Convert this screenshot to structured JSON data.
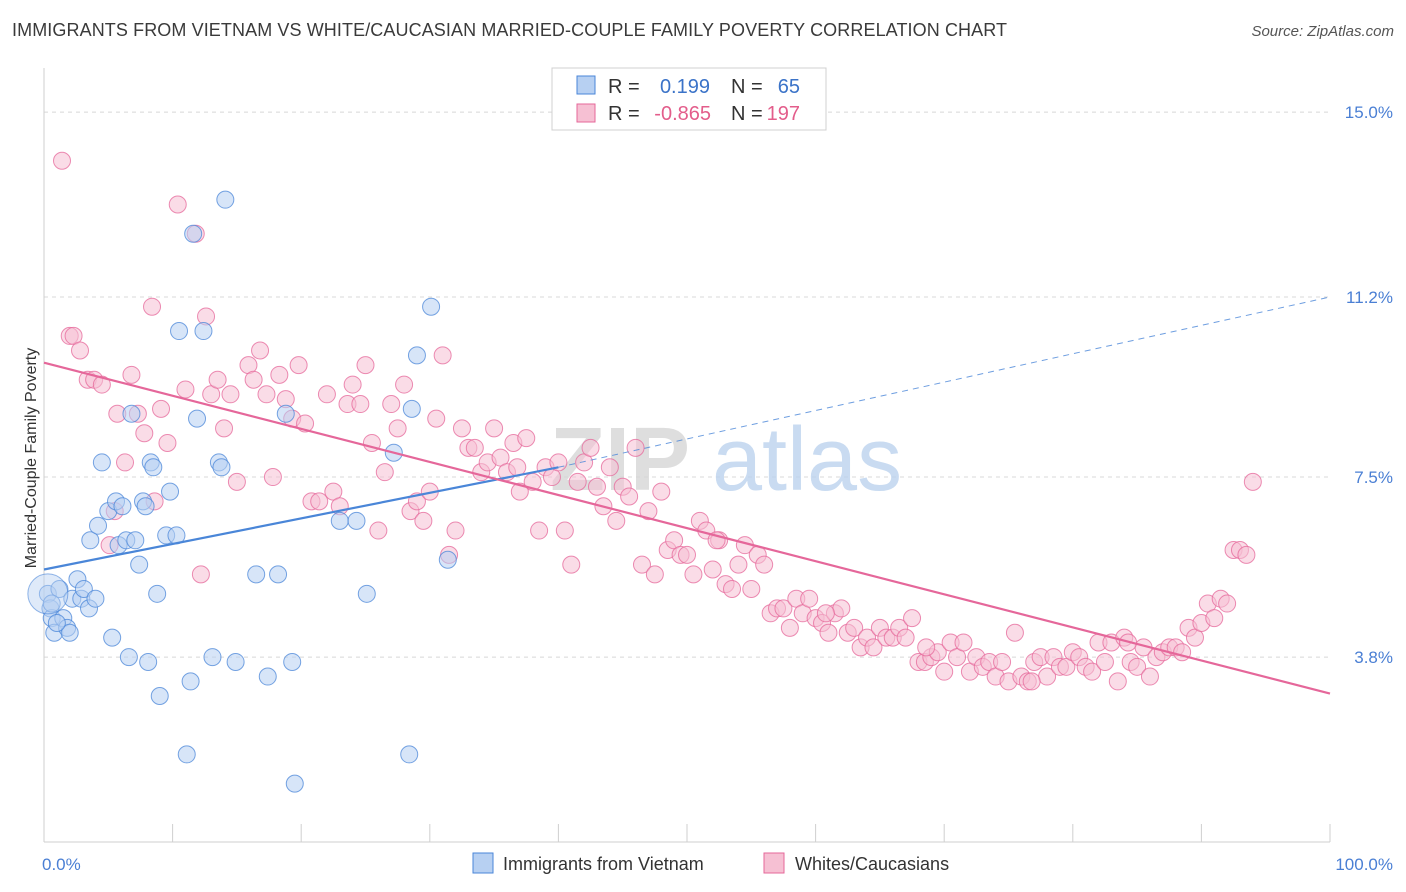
{
  "title": "IMMIGRANTS FROM VIETNAM VS WHITE/CAUCASIAN MARRIED-COUPLE FAMILY POVERTY CORRELATION CHART",
  "source": "Source: ZipAtlas.com",
  "watermark": {
    "zip": "ZIP",
    "atlas": "atlas"
  },
  "colors": {
    "blue": "#4a86d8",
    "blue_fill": "#b7d0f2",
    "pink": "#e5679a",
    "pink_fill": "#f6c0d3",
    "axis_text": "#4a7fd4",
    "grid": "#d8d8d8"
  },
  "legend_top": {
    "rows": [
      {
        "r_label": "R =",
        "r_value": "0.199",
        "n_label": "N =",
        "n_value": "65",
        "series": "blue"
      },
      {
        "r_label": "R =",
        "r_value": "-0.865",
        "n_label": "N =",
        "n_value": "197",
        "series": "pink"
      }
    ]
  },
  "chart_data": {
    "type": "scatter",
    "title": "IMMIGRANTS FROM VIETNAM VS WHITE/CAUCASIAN MARRIED-COUPLE FAMILY POVERTY CORRELATION CHART",
    "xlabel": "",
    "ylabel": "Married-Couple Family Poverty",
    "xlim": [
      0,
      100
    ],
    "ylim": [
      0,
      15.7
    ],
    "x_tick_labels": [
      "0.0%",
      "100.0%"
    ],
    "y_ticks": [
      3.8,
      7.5,
      11.2,
      15.0
    ],
    "y_tick_labels": [
      "3.8%",
      "7.5%",
      "11.2%",
      "15.0%"
    ],
    "grid": true,
    "legend_position": "top-center",
    "series": [
      {
        "name": "Immigrants from Vietnam",
        "color": "#4a86d8",
        "r": 0.199,
        "n": 65,
        "trend": {
          "x": [
            0,
            40
          ],
          "y": [
            5.6,
            7.7
          ],
          "dashed_extension_to": [
            100,
            11.2
          ]
        },
        "points": [
          [
            0.3,
            5.1
          ],
          [
            0.5,
            4.8
          ],
          [
            0.6,
            4.6
          ],
          [
            0.8,
            4.3
          ],
          [
            1.2,
            5.2
          ],
          [
            1.5,
            4.6
          ],
          [
            1.8,
            4.4
          ],
          [
            2.0,
            4.3
          ],
          [
            2.2,
            5.0
          ],
          [
            2.6,
            5.4
          ],
          [
            2.9,
            5.0
          ],
          [
            3.1,
            5.2
          ],
          [
            3.5,
            4.8
          ],
          [
            4.0,
            5.0
          ],
          [
            3.6,
            6.2
          ],
          [
            4.2,
            6.5
          ],
          [
            4.5,
            7.8
          ],
          [
            5.0,
            6.8
          ],
          [
            5.3,
            4.2
          ],
          [
            5.6,
            7.0
          ],
          [
            5.8,
            6.1
          ],
          [
            6.1,
            6.9
          ],
          [
            6.4,
            6.2
          ],
          [
            6.6,
            3.8
          ],
          [
            6.8,
            8.8
          ],
          [
            7.1,
            6.2
          ],
          [
            7.4,
            5.7
          ],
          [
            7.7,
            7.0
          ],
          [
            7.9,
            6.9
          ],
          [
            8.1,
            3.7
          ],
          [
            8.3,
            7.8
          ],
          [
            8.5,
            7.7
          ],
          [
            8.8,
            5.1
          ],
          [
            9.0,
            3.0
          ],
          [
            9.5,
            6.3
          ],
          [
            9.8,
            7.2
          ],
          [
            10.3,
            6.3
          ],
          [
            10.5,
            10.5
          ],
          [
            11.1,
            1.8
          ],
          [
            11.4,
            3.3
          ],
          [
            11.6,
            12.5
          ],
          [
            11.9,
            8.7
          ],
          [
            12.4,
            10.5
          ],
          [
            13.1,
            3.8
          ],
          [
            13.6,
            7.8
          ],
          [
            13.8,
            7.7
          ],
          [
            14.1,
            13.2
          ],
          [
            14.9,
            3.7
          ],
          [
            16.5,
            5.5
          ],
          [
            17.4,
            3.4
          ],
          [
            18.2,
            5.5
          ],
          [
            18.8,
            8.8
          ],
          [
            19.3,
            3.7
          ],
          [
            19.5,
            1.2
          ],
          [
            23.0,
            6.6
          ],
          [
            24.3,
            6.6
          ],
          [
            25.1,
            5.1
          ],
          [
            27.2,
            8.0
          ],
          [
            28.4,
            1.8
          ],
          [
            28.6,
            8.9
          ],
          [
            29.0,
            10.0
          ],
          [
            30.1,
            11.0
          ],
          [
            31.4,
            5.8
          ],
          [
            0.6,
            4.9
          ],
          [
            1.0,
            4.5
          ]
        ]
      },
      {
        "name": "Whites/Caucasians",
        "color": "#e5679a",
        "r": -0.865,
        "n": 197,
        "trend": {
          "x": [
            0,
            100
          ],
          "y": [
            9.85,
            3.05
          ]
        },
        "points": [
          [
            1.4,
            14.0
          ],
          [
            2.0,
            10.4
          ],
          [
            2.3,
            10.4
          ],
          [
            2.8,
            10.1
          ],
          [
            3.4,
            9.5
          ],
          [
            3.9,
            9.5
          ],
          [
            4.5,
            9.4
          ],
          [
            5.1,
            6.1
          ],
          [
            5.5,
            6.8
          ],
          [
            5.7,
            8.8
          ],
          [
            6.3,
            7.8
          ],
          [
            6.8,
            9.6
          ],
          [
            7.3,
            8.8
          ],
          [
            7.8,
            8.4
          ],
          [
            8.4,
            11.0
          ],
          [
            8.6,
            7.0
          ],
          [
            9.1,
            8.9
          ],
          [
            9.6,
            8.2
          ],
          [
            10.4,
            13.1
          ],
          [
            11.0,
            9.3
          ],
          [
            11.8,
            12.5
          ],
          [
            12.2,
            5.5
          ],
          [
            12.6,
            10.8
          ],
          [
            13.0,
            9.2
          ],
          [
            13.5,
            9.5
          ],
          [
            14.0,
            8.5
          ],
          [
            14.5,
            9.2
          ],
          [
            15.0,
            7.4
          ],
          [
            15.9,
            9.8
          ],
          [
            16.3,
            9.5
          ],
          [
            16.8,
            10.1
          ],
          [
            17.3,
            9.2
          ],
          [
            17.8,
            7.5
          ],
          [
            18.3,
            9.6
          ],
          [
            18.8,
            9.1
          ],
          [
            19.3,
            8.7
          ],
          [
            19.8,
            9.8
          ],
          [
            20.3,
            8.6
          ],
          [
            20.8,
            7.0
          ],
          [
            21.4,
            7.0
          ],
          [
            22.0,
            9.2
          ],
          [
            22.5,
            7.2
          ],
          [
            23.0,
            6.9
          ],
          [
            23.6,
            9.0
          ],
          [
            24.0,
            9.4
          ],
          [
            24.6,
            9.0
          ],
          [
            25.0,
            9.8
          ],
          [
            25.5,
            8.2
          ],
          [
            26.0,
            6.4
          ],
          [
            26.5,
            7.6
          ],
          [
            27.0,
            9.0
          ],
          [
            27.5,
            8.5
          ],
          [
            28.0,
            9.4
          ],
          [
            28.5,
            6.8
          ],
          [
            29.0,
            7.0
          ],
          [
            29.5,
            6.6
          ],
          [
            30.0,
            7.2
          ],
          [
            30.5,
            8.7
          ],
          [
            31.0,
            10.0
          ],
          [
            31.5,
            5.9
          ],
          [
            32.0,
            6.4
          ],
          [
            32.5,
            8.5
          ],
          [
            33.0,
            8.1
          ],
          [
            33.5,
            8.1
          ],
          [
            34.0,
            7.6
          ],
          [
            34.5,
            7.8
          ],
          [
            35.0,
            8.5
          ],
          [
            35.5,
            7.9
          ],
          [
            36.0,
            7.6
          ],
          [
            36.5,
            8.2
          ],
          [
            37.0,
            7.2
          ],
          [
            37.5,
            8.3
          ],
          [
            38.0,
            7.4
          ],
          [
            38.5,
            6.4
          ],
          [
            39.0,
            7.7
          ],
          [
            39.5,
            7.5
          ],
          [
            40.0,
            7.8
          ],
          [
            40.5,
            6.4
          ],
          [
            41.0,
            5.7
          ],
          [
            41.5,
            7.4
          ],
          [
            42.0,
            7.8
          ],
          [
            42.5,
            8.1
          ],
          [
            43.0,
            7.3
          ],
          [
            43.5,
            6.9
          ],
          [
            44.0,
            7.7
          ],
          [
            44.5,
            6.6
          ],
          [
            45.0,
            7.3
          ],
          [
            45.5,
            7.1
          ],
          [
            46.0,
            8.1
          ],
          [
            46.5,
            5.7
          ],
          [
            47.0,
            6.8
          ],
          [
            47.5,
            5.5
          ],
          [
            48.0,
            7.2
          ],
          [
            48.5,
            6.0
          ],
          [
            49.0,
            6.2
          ],
          [
            49.5,
            5.9
          ],
          [
            50.0,
            5.9
          ],
          [
            50.5,
            5.5
          ],
          [
            51.0,
            6.6
          ],
          [
            51.5,
            6.4
          ],
          [
            52.0,
            5.6
          ],
          [
            52.5,
            6.2
          ],
          [
            53.0,
            5.3
          ],
          [
            53.5,
            5.2
          ],
          [
            54.0,
            5.7
          ],
          [
            54.5,
            6.1
          ],
          [
            55.0,
            5.2
          ],
          [
            55.5,
            5.9
          ],
          [
            56.0,
            5.7
          ],
          [
            56.5,
            4.7
          ],
          [
            57.0,
            4.8
          ],
          [
            57.5,
            4.8
          ],
          [
            58.0,
            4.4
          ],
          [
            58.5,
            5.0
          ],
          [
            59.0,
            4.7
          ],
          [
            59.5,
            5.0
          ],
          [
            60.0,
            4.6
          ],
          [
            60.5,
            4.5
          ],
          [
            61.0,
            4.3
          ],
          [
            61.5,
            4.7
          ],
          [
            62.0,
            4.8
          ],
          [
            62.5,
            4.3
          ],
          [
            63.0,
            4.4
          ],
          [
            63.5,
            4.0
          ],
          [
            64.0,
            4.2
          ],
          [
            64.5,
            4.0
          ],
          [
            65.0,
            4.4
          ],
          [
            65.5,
            4.2
          ],
          [
            66.0,
            4.2
          ],
          [
            66.5,
            4.4
          ],
          [
            67.0,
            4.2
          ],
          [
            67.5,
            4.6
          ],
          [
            68.0,
            3.7
          ],
          [
            68.5,
            3.7
          ],
          [
            69.0,
            3.8
          ],
          [
            69.5,
            3.9
          ],
          [
            70.0,
            3.5
          ],
          [
            70.5,
            4.1
          ],
          [
            71.0,
            3.8
          ],
          [
            71.5,
            4.1
          ],
          [
            72.0,
            3.5
          ],
          [
            72.5,
            3.8
          ],
          [
            73.0,
            3.6
          ],
          [
            73.5,
            3.7
          ],
          [
            74.0,
            3.4
          ],
          [
            74.5,
            3.7
          ],
          [
            75.0,
            3.3
          ],
          [
            75.5,
            4.3
          ],
          [
            76.0,
            3.4
          ],
          [
            76.5,
            3.3
          ],
          [
            77.0,
            3.7
          ],
          [
            77.5,
            3.8
          ],
          [
            78.0,
            3.4
          ],
          [
            78.5,
            3.8
          ],
          [
            79.0,
            3.6
          ],
          [
            79.5,
            3.6
          ],
          [
            80.0,
            3.9
          ],
          [
            80.5,
            3.8
          ],
          [
            81.0,
            3.6
          ],
          [
            81.5,
            3.5
          ],
          [
            82.0,
            4.1
          ],
          [
            82.5,
            3.7
          ],
          [
            83.0,
            4.1
          ],
          [
            83.5,
            3.3
          ],
          [
            84.0,
            4.2
          ],
          [
            84.5,
            3.7
          ],
          [
            85.0,
            3.6
          ],
          [
            85.5,
            4.0
          ],
          [
            86.0,
            3.4
          ],
          [
            86.5,
            3.8
          ],
          [
            87.0,
            3.9
          ],
          [
            87.5,
            4.0
          ],
          [
            88.0,
            4.0
          ],
          [
            88.5,
            3.9
          ],
          [
            89.0,
            4.4
          ],
          [
            89.5,
            4.2
          ],
          [
            90.0,
            4.5
          ],
          [
            90.5,
            4.9
          ],
          [
            91.0,
            4.6
          ],
          [
            91.5,
            5.0
          ],
          [
            92.0,
            4.9
          ],
          [
            92.5,
            6.0
          ],
          [
            93.0,
            6.0
          ],
          [
            93.5,
            5.9
          ],
          [
            94.0,
            7.4
          ],
          [
            36.8,
            7.7
          ],
          [
            52.3,
            6.2
          ],
          [
            60.8,
            4.7
          ],
          [
            68.6,
            4.0
          ],
          [
            76.8,
            3.3
          ],
          [
            84.3,
            4.1
          ]
        ]
      }
    ]
  },
  "bottom_legend": {
    "items": [
      {
        "label": "Immigrants from Vietnam",
        "series": "blue"
      },
      {
        "label": "Whites/Caucasians",
        "series": "pink"
      }
    ]
  }
}
